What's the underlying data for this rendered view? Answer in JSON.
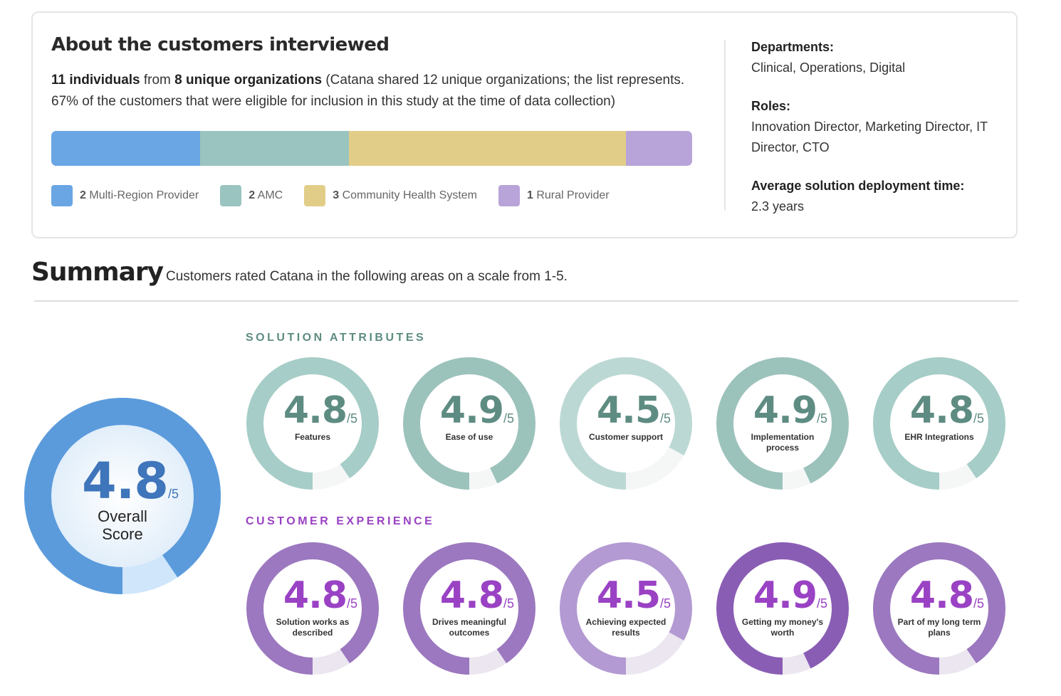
{
  "about": {
    "title": "About the customers interviewed",
    "intro_bold1": "11 individuals",
    "intro_mid": " from ",
    "intro_bold2": "8 unique organizations",
    "intro_rest": " (Catana shared 12 unique organizations; the list represents. 67% of the customers that were eligible for inclusion in this study at the time of data collection)",
    "segments": [
      {
        "count": "2",
        "label": "Multi-Region Provider",
        "color": "#6aa6e4",
        "weight": 209
      },
      {
        "count": "2",
        "label": "AMC",
        "color": "#9ac4bf",
        "weight": 209
      },
      {
        "count": "3",
        "label": "Community Health System",
        "color": "#e2cd88",
        "weight": 388
      },
      {
        "count": "1",
        "label": "Rural Provider",
        "color": "#b8a4d8",
        "weight": 93
      }
    ],
    "departments_label": "Departments:",
    "departments": "Clinical, Operations, Digital",
    "roles_label": "Roles:",
    "roles": "Innovation Director, Marketing Director, IT Director, CTO",
    "deploy_label": "Average solution deployment time:",
    "deploy": "2.3 years"
  },
  "summary": {
    "title": "Summary",
    "subtitle": "Customers rated Catana in the following areas on a scale from 1-5.",
    "denominator": "/5",
    "overall": {
      "score": "4.8",
      "label1": "Overall",
      "label2": "Score",
      "color": "#5b9bdc",
      "track": "#cfe6fb",
      "text": "#3f75ba"
    },
    "solution_title": "SOLUTION ATTRIBUTES",
    "solution_color": "#5e8c82",
    "solution": [
      {
        "score": "4.8",
        "label": "Features",
        "color": "#a6cdc7"
      },
      {
        "score": "4.9",
        "label": "Ease of use",
        "color": "#9cc2bc"
      },
      {
        "score": "4.5",
        "label": "Customer support",
        "color": "#bcd8d4"
      },
      {
        "score": "4.9",
        "label": "Implementation process",
        "color": "#9cc2bc"
      },
      {
        "score": "4.8",
        "label": "EHR Integrations",
        "color": "#a6cdc7"
      }
    ],
    "experience_title": "CUSTOMER EXPERIENCE",
    "experience_color": "#9a42c4",
    "experience": [
      {
        "score": "4.8",
        "label": "Solution works as described",
        "color": "#9b78bf"
      },
      {
        "score": "4.8",
        "label": "Drives meaningful outcomes",
        "color": "#9b78bf"
      },
      {
        "score": "4.5",
        "label": "Achieving expected results",
        "color": "#b39ad2"
      },
      {
        "score": "4.9",
        "label": "Getting my money's worth",
        "color": "#8a5db5"
      },
      {
        "score": "4.8",
        "label": "Part of my long term plans",
        "color": "#9b78bf"
      }
    ]
  }
}
